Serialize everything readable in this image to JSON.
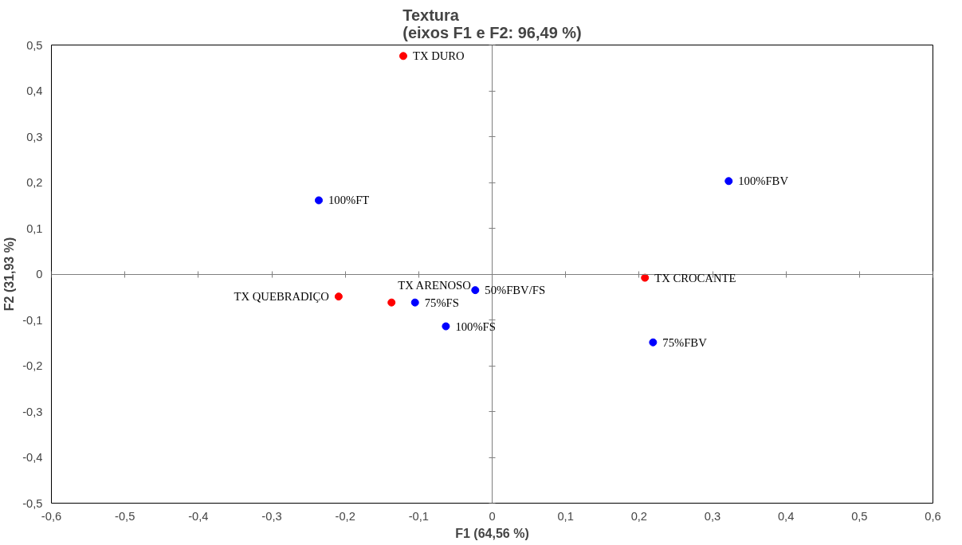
{
  "chart_data": {
    "type": "scatter",
    "title": "Textura\n(eixos F1 e F2: 96,49 %)",
    "xlabel": "F1 (64,56 %)",
    "ylabel": "F2 (31,93 %)",
    "series": [
      {
        "color": "#ff0000",
        "x": [
          -0.121,
          -0.209,
          -0.137,
          0.208
        ],
        "values": [
          0.476,
          -0.049,
          -0.062,
          -0.008
        ]
      },
      {
        "color": "#0000ff",
        "x": [
          -0.236,
          -0.105,
          -0.063,
          -0.023,
          0.322,
          0.219
        ],
        "values": [
          0.161,
          -0.062,
          -0.114,
          -0.035,
          0.203,
          -0.149
        ]
      }
    ],
    "annotations": [
      {
        "text": "TX DURO",
        "x": -0.121,
        "y": 0.476
      },
      {
        "text": "100%FT",
        "x": -0.236,
        "y": 0.161
      },
      {
        "text": "100%FBV",
        "x": 0.322,
        "y": 0.203
      },
      {
        "text": "TX ARENOSO",
        "x": -0.137,
        "y": -0.062
      },
      {
        "text": "50%FBV/FS",
        "x": -0.023,
        "y": -0.035
      },
      {
        "text": "TX QUEBRADIÇO",
        "x": -0.209,
        "y": -0.049
      },
      {
        "text": "TX CROCANTE",
        "x": 0.208,
        "y": -0.008
      },
      {
        "text": "75%FS",
        "x": -0.105,
        "y": -0.062
      },
      {
        "text": "100%FS",
        "x": -0.063,
        "y": -0.114
      },
      {
        "text": "75%FBV",
        "x": 0.219,
        "y": -0.149
      }
    ],
    "xlim": [
      -0.6,
      0.6
    ],
    "ylim": [
      -0.5,
      0.5
    ],
    "xticks": [
      {
        "value": -0.6,
        "label": "-0,6"
      },
      {
        "value": -0.5,
        "label": "-0,5"
      },
      {
        "value": -0.4,
        "label": "-0,4"
      },
      {
        "value": -0.3,
        "label": "-0,3"
      },
      {
        "value": -0.2,
        "label": "-0,2"
      },
      {
        "value": -0.1,
        "label": "-0,1"
      },
      0,
      {
        "value": 0.1,
        "label": "0,1"
      },
      {
        "value": 0.2,
        "label": "0,2"
      },
      {
        "value": 0.3,
        "label": "0,3"
      },
      {
        "value": 0.4,
        "label": "0,4"
      },
      {
        "value": 0.5,
        "label": "0,5"
      },
      {
        "value": 0.6,
        "label": "0,6"
      }
    ],
    "yticks": [
      {
        "value": -0.5,
        "label": "-0,5"
      },
      {
        "value": -0.4,
        "label": "-0,4"
      },
      {
        "value": -0.3,
        "label": "-0,3"
      },
      {
        "value": -0.2,
        "label": "-0,2"
      },
      {
        "value": -0.1,
        "label": "-0,1"
      },
      0,
      {
        "value": 0.1,
        "label": "0,1"
      },
      {
        "value": 0.2,
        "label": "0,2"
      },
      {
        "value": 0.3,
        "label": "0,3"
      },
      {
        "value": 0.4,
        "label": "0,4"
      },
      {
        "value": 0.5,
        "label": "0,5"
      }
    ],
    "marker": "circle"
  }
}
